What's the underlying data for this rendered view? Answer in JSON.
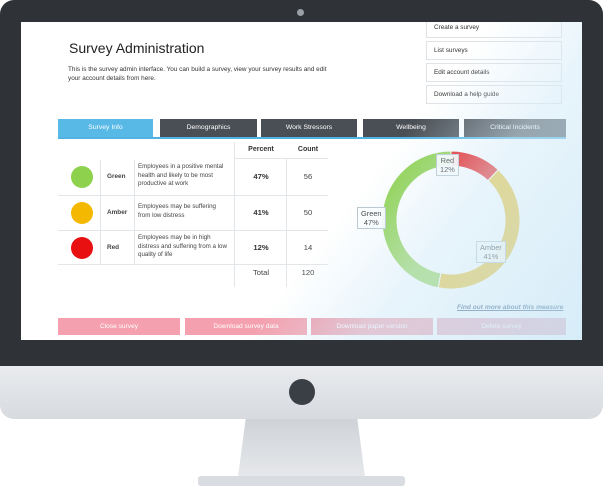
{
  "page": {
    "title": "Survey Administration",
    "intro": "This is the survey admin interface. You can build a survey, view your survey results and edit your account details from here."
  },
  "menu": {
    "items": [
      {
        "label": "Create a survey"
      },
      {
        "label": "List surveys"
      },
      {
        "label": "Edit account details"
      },
      {
        "label": "Download a help guide"
      }
    ]
  },
  "tabs": [
    {
      "label": "Survey Info",
      "active": true
    },
    {
      "label": "Demographics",
      "active": false
    },
    {
      "label": "Work Stressors",
      "active": false
    },
    {
      "label": "Wellbeing",
      "active": false
    },
    {
      "label": "Critical Incidents",
      "active": false
    }
  ],
  "table": {
    "headers": {
      "percent": "Percent",
      "count": "Count"
    },
    "rows": [
      {
        "level": "Green",
        "color": "#8dd14c",
        "description": "Employees in a positive mental health and likely to be most productive at work",
        "percent": "47%",
        "count": "56"
      },
      {
        "level": "Amber",
        "color": "#f5b800",
        "description": "Employees may be suffering from low distress",
        "percent": "41%",
        "count": "50"
      },
      {
        "level": "Red",
        "color": "#e81010",
        "description": "Employees may be in high distress and suffering from a low quality of life",
        "percent": "12%",
        "count": "14"
      }
    ],
    "total_label": "Total",
    "total_value": "120"
  },
  "chart_data": {
    "type": "pie",
    "donut": true,
    "labels": [
      "Red",
      "Amber",
      "Green"
    ],
    "values": [
      12,
      41,
      47
    ],
    "display_labels": [
      "12%",
      "41%",
      "47%"
    ],
    "colors": [
      "#e81010",
      "#e9be24",
      "#8dd14c"
    ]
  },
  "links": {
    "more": "Find out more about this measure"
  },
  "actions": [
    {
      "label": "Close survey",
      "color": "#f4a0ae"
    },
    {
      "label": "Download survey data",
      "color": "#f4a0ae"
    },
    {
      "label": "Download paper version",
      "color": "#ef9aaa"
    },
    {
      "label": "Delete survey",
      "color": "#e8a4b6"
    }
  ],
  "colors": {
    "tab_active": "#58b8e6",
    "tab_inactive": "#4a4f55",
    "accent": "#4fb4e3",
    "bezel": "#2f3338"
  }
}
